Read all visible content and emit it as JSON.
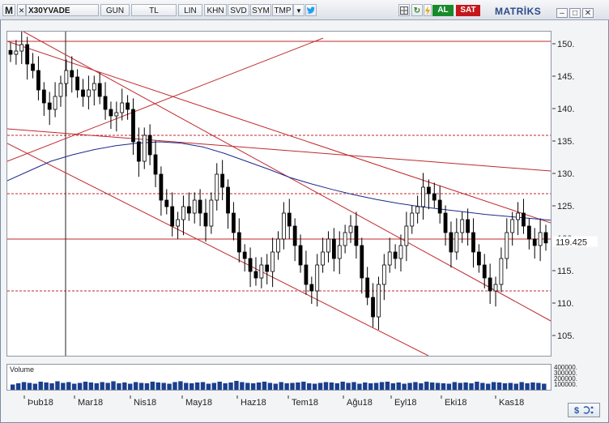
{
  "toolbar": {
    "logo": "M",
    "symbol": "X30YVADE",
    "period": "GUN",
    "currency": "TL",
    "scale": "LIN",
    "buttons": [
      "KHN",
      "SVD",
      "SYM",
      "TMP"
    ],
    "buy_label": "AL",
    "sell_label": "SAT",
    "brand": "MATRİKS",
    "accent_blue": "#1da1f2",
    "buy_color": "#178a2c",
    "sell_color": "#c4161c"
  },
  "price_panel": {
    "y_ticks": [
      "150.",
      "145.",
      "140.",
      "135.",
      "130.",
      "125.",
      "120.",
      "115.",
      "110.",
      "105."
    ],
    "last_price": "119.425"
  },
  "volume_panel": {
    "label": "Volume",
    "y_ticks": [
      "400000.",
      "300000.",
      "200000.",
      "100000."
    ]
  },
  "x_ticks": [
    "Þub18",
    "Mar18",
    "Nis18",
    "May18",
    "Haz18",
    "Tem18",
    "Ağu18",
    "Eyl18",
    "Eki18",
    "Kas18"
  ],
  "chart_data": {
    "type": "candlestick",
    "x_labels": [
      "Þub18",
      "Mar18",
      "Nis18",
      "May18",
      "Haz18",
      "Tem18",
      "Ağu18",
      "Eyl18",
      "Eki18",
      "Kas18"
    ],
    "ylim": [
      102,
      152
    ],
    "close_series": [
      148.5,
      149,
      150,
      147,
      146,
      143,
      141,
      140,
      142,
      144,
      146,
      145,
      143,
      142,
      143,
      144,
      142,
      140,
      139,
      139.5,
      141,
      140,
      135,
      132,
      136,
      133,
      130,
      126,
      125,
      122,
      123,
      125,
      124,
      126,
      124,
      122,
      126,
      130,
      128,
      124,
      121,
      118,
      117,
      115,
      114,
      116,
      115,
      118,
      120,
      124,
      122,
      119,
      116,
      113,
      112,
      116,
      118,
      120,
      117,
      119,
      121,
      122,
      119,
      114,
      111,
      108,
      113,
      116,
      118,
      117,
      119,
      122,
      124,
      125,
      128,
      127,
      126,
      124,
      121,
      118,
      121,
      123,
      121,
      118,
      116,
      114,
      112,
      113,
      117,
      121,
      123,
      124,
      122,
      120,
      119,
      121,
      119.4
    ],
    "horizontal_levels": [
      150.5,
      136,
      127,
      120,
      112
    ],
    "ma_series": [
      129,
      130.5,
      132,
      133,
      133.8,
      134.4,
      134.8,
      135,
      134.8,
      134.2,
      133.2,
      132,
      130.8,
      129.5,
      128.5,
      127.6,
      126.8,
      126.1,
      125.5,
      125,
      124.6,
      124.2,
      123.8,
      123.5,
      123.2,
      122.9
    ],
    "last_price": 119.425,
    "volume": [
      130000,
      160000,
      190000,
      170000,
      150000,
      200000,
      180000,
      160000,
      210000,
      170000,
      190000,
      150000,
      170000,
      200000,
      180000,
      160000,
      190000,
      170000,
      210000,
      160000,
      180000,
      150000,
      190000,
      170000,
      160000,
      200000,
      180000,
      170000,
      150000,
      190000,
      210000,
      170000,
      160000,
      180000,
      190000,
      150000,
      170000,
      200000,
      160000,
      180000,
      220000,
      190000,
      170000,
      160000,
      180000,
      200000,
      170000,
      150000,
      190000,
      160000,
      170000,
      180000,
      200000,
      160000,
      150000,
      170000,
      190000,
      180000,
      160000,
      200000,
      170000,
      190000,
      150000,
      180000,
      160000,
      170000,
      190000,
      200000,
      160000,
      180000,
      150000,
      170000,
      190000,
      160000,
      200000,
      180000,
      170000,
      160000,
      150000,
      190000,
      170000,
      180000,
      160000,
      200000,
      170000,
      150000,
      190000,
      180000,
      160000,
      170000,
      150000,
      190000,
      160000,
      180000,
      170000,
      150000
    ],
    "volume_ylim": [
      0,
      420000
    ]
  }
}
